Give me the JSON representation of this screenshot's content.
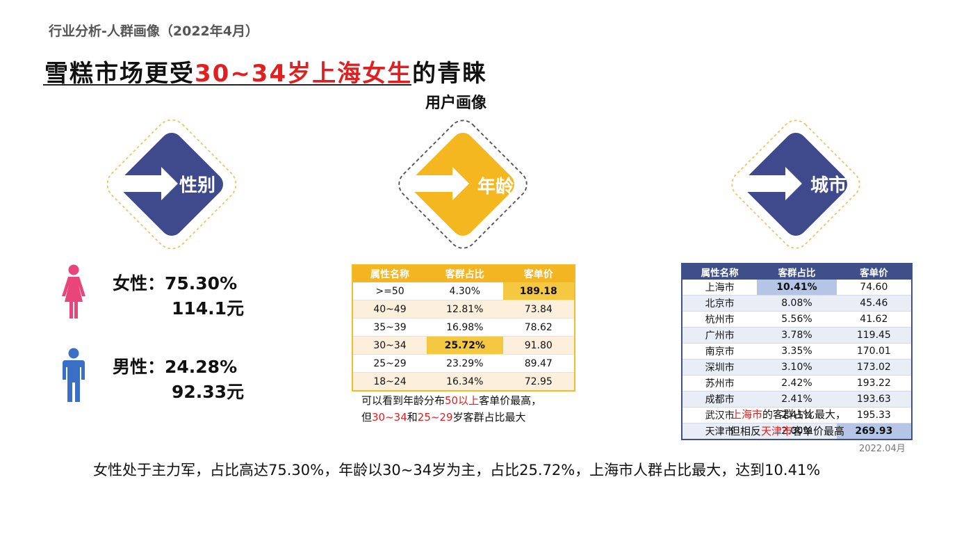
{
  "header": "行业分析-人群画像（2022年4月）",
  "title": {
    "pre": "雪糕市场更受",
    "highlight": "30~34岁上海女生",
    "post": "的青睐"
  },
  "subheading": "用户画像",
  "colors": {
    "navy": "#3f4a8c",
    "gold": "#f5b71f",
    "red": "#e02020",
    "female": "#e8457a",
    "male": "#3a6fc6"
  },
  "diamonds": {
    "gender": "性别",
    "age": "年龄",
    "city": "城市"
  },
  "gender": {
    "female": {
      "icon": "female-person-icon",
      "line1": "女性：75.30%",
      "line2": "114.1元"
    },
    "male": {
      "icon": "male-person-icon",
      "line1": "男性：24.28%",
      "line2": "92.33元"
    }
  },
  "age_table": {
    "headers": [
      "属性名称",
      "客群占比",
      "客单价"
    ],
    "rows": [
      [
        ">=50",
        "4.30%",
        "189.18"
      ],
      [
        "40~49",
        "12.81%",
        "73.84"
      ],
      [
        "35~39",
        "16.98%",
        "78.62"
      ],
      [
        "30~34",
        "25.72%",
        "91.80"
      ],
      [
        "25~29",
        "23.29%",
        "89.47"
      ],
      [
        "18~24",
        "16.34%",
        "72.95"
      ]
    ]
  },
  "age_note": {
    "l1_a": "可以看到年龄分布",
    "l1_red": "50以上",
    "l1_b": "客单价最高，",
    "l2_a": "但",
    "l2_red1": "30~34",
    "l2_b": "和",
    "l2_red2": "25~29",
    "l2_c": "岁客群占比最大"
  },
  "city_table": {
    "headers": [
      "属性名称",
      "客群占比",
      "客单价"
    ],
    "rows": [
      [
        "上海市",
        "10.41%",
        "74.60"
      ],
      [
        "北京市",
        "8.08%",
        "45.46"
      ],
      [
        "杭州市",
        "5.56%",
        "41.62"
      ],
      [
        "广州市",
        "3.78%",
        "119.45"
      ],
      [
        "南京市",
        "3.35%",
        "170.01"
      ],
      [
        "深圳市",
        "3.10%",
        "173.02"
      ],
      [
        "苏州市",
        "2.42%",
        "193.22"
      ],
      [
        "成都市",
        "2.41%",
        "193.63"
      ],
      [
        "武汉市",
        "2.41%",
        "195.33"
      ],
      [
        "天津市",
        "2.00%",
        "269.93"
      ]
    ]
  },
  "city_note": {
    "l1_red": "上海市",
    "l1_b": "的客群占比最大，",
    "l2_a": "但相反",
    "l2_red": "天津市",
    "l2_b": "客单价最高"
  },
  "date": "2022.04月",
  "summary": "女性处于主力军，占比高达75.30%，年龄以30~34岁为主，占比25.72%，上海市人群占比最大，达到10.41%"
}
